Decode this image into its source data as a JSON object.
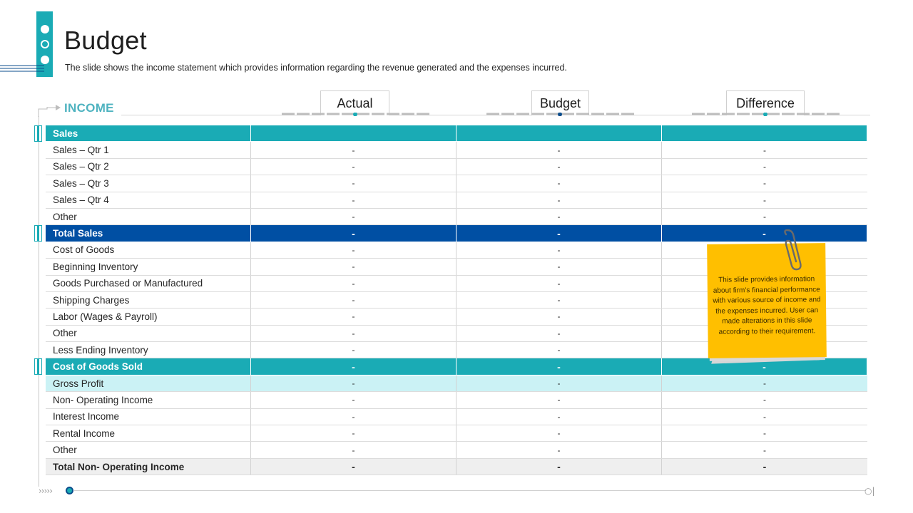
{
  "header": {
    "title": "Budget",
    "subtitle": "The slide shows the income statement which provides information regarding the revenue generated and the expenses incurred."
  },
  "section_label": "INCOME",
  "columns": [
    "Actual",
    "Budget",
    "Difference"
  ],
  "rows": [
    {
      "label": "Sales",
      "values": [
        "",
        "",
        ""
      ],
      "style": "teal"
    },
    {
      "label": "Sales – Qtr 1",
      "values": [
        "-",
        "-",
        "-"
      ],
      "style": "plain"
    },
    {
      "label": "Sales – Qtr 2",
      "values": [
        "-",
        "-",
        "-"
      ],
      "style": "plain"
    },
    {
      "label": "Sales – Qtr 3",
      "values": [
        "-",
        "-",
        "-"
      ],
      "style": "plain"
    },
    {
      "label": "Sales – Qtr 4",
      "values": [
        "-",
        "-",
        "-"
      ],
      "style": "plain"
    },
    {
      "label": "Other",
      "values": [
        "-",
        "-",
        "-"
      ],
      "style": "plain"
    },
    {
      "label": "Total Sales",
      "values": [
        "-",
        "-",
        "-"
      ],
      "style": "navy"
    },
    {
      "label": "Cost of Goods",
      "values": [
        "-",
        "-",
        "-"
      ],
      "style": "plain"
    },
    {
      "label": "Beginning Inventory",
      "values": [
        "-",
        "-",
        "-"
      ],
      "style": "plain"
    },
    {
      "label": "Goods Purchased or Manufactured",
      "values": [
        "-",
        "-",
        "-"
      ],
      "style": "plain"
    },
    {
      "label": "Shipping Charges",
      "values": [
        "-",
        "-",
        "-"
      ],
      "style": "plain"
    },
    {
      "label": "Labor (Wages & Payroll)",
      "values": [
        "-",
        "-",
        "-"
      ],
      "style": "plain"
    },
    {
      "label": "Other",
      "values": [
        "-",
        "-",
        "-"
      ],
      "style": "plain"
    },
    {
      "label": "Less Ending Inventory",
      "values": [
        "-",
        "-",
        "-"
      ],
      "style": "plain"
    },
    {
      "label": "Cost of Goods Sold",
      "values": [
        "-",
        "-",
        "-"
      ],
      "style": "teal"
    },
    {
      "label": "Gross Profit",
      "values": [
        "-",
        "-",
        "-"
      ],
      "style": "light"
    },
    {
      "label": "Non- Operating Income",
      "values": [
        "-",
        "-",
        "-"
      ],
      "style": "plain"
    },
    {
      "label": "Interest Income",
      "values": [
        "-",
        "-",
        "-"
      ],
      "style": "plain"
    },
    {
      "label": "Rental Income",
      "values": [
        "-",
        "-",
        "-"
      ],
      "style": "plain"
    },
    {
      "label": "Other",
      "values": [
        "-",
        "-",
        "-"
      ],
      "style": "plain"
    },
    {
      "label": "Total Non- Operating Income",
      "values": [
        "-",
        "-",
        "-"
      ],
      "style": "grey"
    }
  ],
  "note": {
    "text": "This slide provides information about firm’s financial performance with various source of income and the expenses incurred.  User can made alterations in this slide according to their requirement."
  },
  "colors": {
    "teal": "#1aabb5",
    "navy": "#004fa3",
    "light_teal": "#cbf2f5",
    "note_yellow": "#ffbf00"
  },
  "icons": [
    "paperclip-icon",
    "arrow-right-icon",
    "chevron-right-icon"
  ]
}
